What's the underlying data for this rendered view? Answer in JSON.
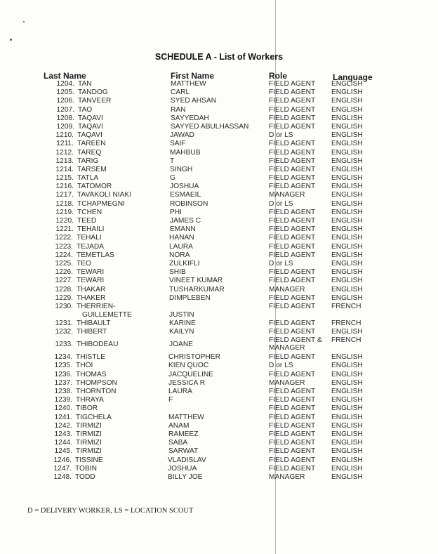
{
  "title": "SCHEDULE A -  List of Workers",
  "headers": {
    "last_name": "Last Name",
    "first_name": "First Name",
    "role": "Role",
    "language": "Language"
  },
  "workers": [
    {
      "num": "1204.",
      "last": "TAN",
      "first": "MATTHEW",
      "role": "FIELD AGENT",
      "lang": "ENGLISH"
    },
    {
      "num": "1205.",
      "last": "TANDOG",
      "first": "CARL",
      "role": "FIELD AGENT",
      "lang": "ENGLISH"
    },
    {
      "num": "1206.",
      "last": "TANVEER",
      "first": "SYED AHSAN",
      "role": "FIELD AGENT",
      "lang": "ENGLISH"
    },
    {
      "num": "1207.",
      "last": "TAO",
      "first": "RAN",
      "role": "FIELD AGENT",
      "lang": "ENGLISH"
    },
    {
      "num": "1208.",
      "last": "TAQAVI",
      "first": "SAYYEDAH",
      "role": "FIELD AGENT",
      "lang": "ENGLISH"
    },
    {
      "num": "1209.",
      "last": "TAQAVI",
      "first": "SAYYED ABULHASSAN",
      "role": "FIELD AGENT",
      "lang": "ENGLISH"
    },
    {
      "num": "1210.",
      "last": "TAQAVI",
      "first": "JAWAD",
      "role": "D or LS",
      "lang": "ENGLISH"
    },
    {
      "num": "1211.",
      "last": "TAREEN",
      "first": "SAIF",
      "role": "FIELD AGENT",
      "lang": "ENGLISH"
    },
    {
      "num": "1212.",
      "last": "TAREQ",
      "first": "MAHBUB",
      "role": "FIELD AGENT",
      "lang": "ENGLISH"
    },
    {
      "num": "1213.",
      "last": "TARIG",
      "first": "T",
      "role": "FIELD AGENT",
      "lang": "ENGLISH"
    },
    {
      "num": "1214.",
      "last": "TARSEM",
      "first": "SINGH",
      "role": "FIELD AGENT",
      "lang": "ENGLISH"
    },
    {
      "num": "1215.",
      "last": "TATLA",
      "first": "G",
      "role": "FIELD AGENT",
      "lang": "ENGLISH"
    },
    {
      "num": "1216.",
      "last": "TATOMOR",
      "first": "JOSHUA",
      "role": "FIELD AGENT",
      "lang": "ENGLISH"
    },
    {
      "num": "1217.",
      "last": "TAVAKOLI NIAKI",
      "first": "ESMAEIL",
      "role": "MANAGER",
      "lang": "ENGLISH"
    },
    {
      "num": "1218.",
      "last": "TCHAPMEGNI",
      "first": "ROBINSON",
      "role": "D or LS",
      "lang": "ENGLISH"
    },
    {
      "num": "1219.",
      "last": "TCHEN",
      "first": "PHI",
      "role": "FIELD AGENT",
      "lang": "ENGLISH"
    },
    {
      "num": "1220.",
      "last": "TEED",
      "first": "JAMES C",
      "role": "FIELD AGENT",
      "lang": "ENGLISH"
    },
    {
      "num": "1221.",
      "last": "TEHAILI",
      "first": "EMANN",
      "role": "FIELD AGENT",
      "lang": "ENGLISH"
    },
    {
      "num": "1222.",
      "last": "TEHALI",
      "first": "HANAN",
      "role": "FIELD AGENT",
      "lang": "ENGLISH"
    },
    {
      "num": "1223.",
      "last": "TEJADA",
      "first": "LAURA",
      "role": "FIELD AGENT",
      "lang": "ENGLISH"
    },
    {
      "num": "1224.",
      "last": "TEMETLAS",
      "first": "NORA",
      "role": "FIELD AGENT",
      "lang": "ENGLISH"
    },
    {
      "num": "1225.",
      "last": "TEO",
      "first": "ZULKIFLI",
      "role": "D or LS",
      "lang": "ENGLISH"
    },
    {
      "num": "1226.",
      "last": "TEWARI",
      "first": "SHIB",
      "role": "FIELD AGENT",
      "lang": "ENGLISH"
    },
    {
      "num": "1227.",
      "last": "TEWARI",
      "first": "VINEET KUMAR",
      "role": "FIELD AGENT",
      "lang": "ENGLISH"
    },
    {
      "num": "1228.",
      "last": "THAKAR",
      "first": "TUSHARKUMAR",
      "role": "MANAGER",
      "lang": "ENGLISH"
    },
    {
      "num": "1229.",
      "last": "THAKER",
      "first": "DIMPLEBEN",
      "role": "FIELD AGENT",
      "lang": "ENGLISH"
    },
    {
      "num": "1230.",
      "last": "THERRIEN-",
      "last2": "GUILLEMETTE",
      "first": "JUSTIN",
      "role": "FIELD AGENT",
      "lang": "FRENCH",
      "layout": "two"
    },
    {
      "num": "1231.",
      "last": "THIBAULT",
      "first": "KARINE",
      "role": "FIELD AGENT",
      "lang": "FRENCH"
    },
    {
      "num": "1232.",
      "last": "THIBERT",
      "first": "KAILYN",
      "role": "FIELD AGENT",
      "lang": "ENGLISH"
    },
    {
      "num": "1233.",
      "last": "THIBODEAU",
      "first": "JOANE",
      "role": "FIELD AGENT &",
      "role2": "MANAGER",
      "lang": "FRENCH",
      "layout": "three"
    },
    {
      "num": "1234.",
      "last": "THISTLE",
      "first": "CHRISTOPHER",
      "role": "FIELD AGENT",
      "lang": "ENGLISH"
    },
    {
      "num": "1235.",
      "last": "THOI",
      "first": "KIEN QUOC",
      "role": "D or LS",
      "lang": "ENGLISH"
    },
    {
      "num": "1236.",
      "last": "THOMAS",
      "first": "JACQUELINE",
      "role": "FIELD AGENT",
      "lang": "ENGLISH"
    },
    {
      "num": "1237.",
      "last": "THOMPSON",
      "first": "JESSICA R",
      "role": "MANAGER",
      "lang": "ENGLISH"
    },
    {
      "num": "1238.",
      "last": "THORNTON",
      "first": "LAURA",
      "role": "FIELD AGENT",
      "lang": "ENGLISH"
    },
    {
      "num": "1239.",
      "last": "THRAYA",
      "first": "F",
      "role": "FIELD AGENT",
      "lang": "ENGLISH"
    },
    {
      "num": "1240.",
      "last": "TIBOR",
      "first": "",
      "role": "FIELD AGENT",
      "lang": "ENGLISH"
    },
    {
      "num": "1241.",
      "last": "TIGCHELA",
      "first": "MATTHEW",
      "role": "FIELD AGENT",
      "lang": "ENGLISH"
    },
    {
      "num": "1242.",
      "last": "TIRMIZI",
      "first": "ANAM",
      "role": "FIELD AGENT",
      "lang": "ENGLISH"
    },
    {
      "num": "1243.",
      "last": "TIRMIZI",
      "first": "RAMEEZ",
      "role": "FIELD AGENT",
      "lang": "ENGLISH"
    },
    {
      "num": "1244.",
      "last": "TIRMIZI",
      "first": "SABA",
      "role": "FIELD AGENT",
      "lang": "ENGLISH"
    },
    {
      "num": "1245.",
      "last": "TIRMIZI",
      "first": "SARWAT",
      "role": "FIELD AGENT",
      "lang": "ENGLISH"
    },
    {
      "num": "1246.",
      "last": "TISSINE",
      "first": "VLADISLAV",
      "role": "FIELD AGENT",
      "lang": "ENGLISH"
    },
    {
      "num": "1247.",
      "last": "TOBIN",
      "first": "JOSHUA",
      "role": "FIELD AGENT",
      "lang": "ENGLISH"
    },
    {
      "num": "1248.",
      "last": "TODD",
      "first": "BILLY JOE",
      "role": "MANAGER",
      "lang": "ENGLISH"
    }
  ],
  "footer": "D = DELIVERY WORKER, LS = LOCATION SCOUT"
}
